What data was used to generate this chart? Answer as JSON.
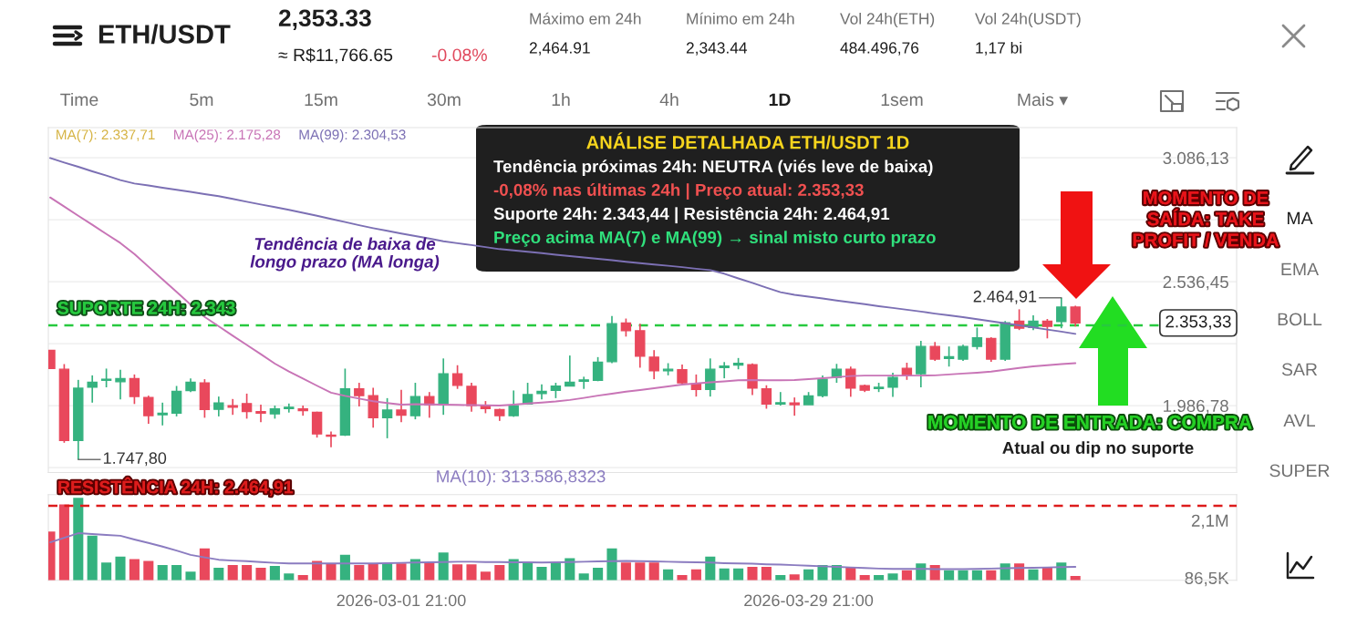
{
  "chart_data": [
    {
      "type": "candlestick",
      "title": "ETH/USDT",
      "subtitle": "2,353.33",
      "categories": [
        null,
        null,
        null,
        null,
        null,
        null,
        null,
        null,
        null,
        null,
        null,
        null,
        null,
        null,
        null,
        null,
        null,
        null,
        null,
        null,
        null,
        null,
        null,
        null,
        null,
        "2026-03-01 21:00",
        null,
        null,
        null,
        null,
        null,
        null,
        null,
        null,
        null,
        null,
        null,
        null,
        null,
        null,
        null,
        null,
        null,
        null,
        null,
        null,
        null,
        null,
        null,
        null,
        null,
        null,
        null,
        null,
        "2026-03-29 21:00",
        null,
        null,
        null,
        null,
        null,
        null,
        null,
        null,
        null,
        null,
        null,
        null,
        null,
        null,
        null,
        null,
        null,
        null,
        null
      ],
      "ohlc": [
        [
          2232,
          2232,
          2151,
          2151
        ],
        [
          2148,
          2171,
          1822,
          1832
        ],
        [
          1832,
          2101,
          1747.8,
          2064
        ],
        [
          2068,
          2121,
          2000,
          2091
        ],
        [
          2099,
          2151,
          2068,
          2104
        ],
        [
          2093,
          2146,
          2014,
          2107
        ],
        [
          2107,
          2125,
          1994,
          2027
        ],
        [
          2023,
          2031,
          1906,
          1942
        ],
        [
          1946,
          2000,
          1899,
          1953
        ],
        [
          1953,
          2074,
          1939,
          2050
        ],
        [
          2053,
          2107,
          2047,
          2091
        ],
        [
          2088,
          2104,
          1933,
          1969
        ],
        [
          1970,
          2027,
          1939,
          1999
        ],
        [
          1987,
          2016,
          1946,
          1980
        ],
        [
          1996,
          2040,
          1929,
          1960
        ],
        [
          1960,
          1991,
          1913,
          1953
        ],
        [
          1950,
          1987,
          1929,
          1972
        ],
        [
          1973,
          1996,
          1956,
          1980
        ],
        [
          1972,
          1987,
          1942,
          1964
        ],
        [
          1957,
          1960,
          1845,
          1861
        ],
        [
          1856,
          1872,
          1802,
          1851
        ],
        [
          1856,
          2151,
          1852,
          2061
        ],
        [
          2061,
          2088,
          1983,
          2031
        ],
        [
          2031,
          2066,
          1889,
          1933
        ],
        [
          1933,
          2020,
          1842,
          1967
        ],
        [
          1967,
          2057,
          1913,
          1944
        ],
        [
          1942,
          2088,
          1926,
          2027
        ],
        [
          2027,
          2047,
          1933,
          1991
        ],
        [
          1991,
          2196,
          1946,
          2128
        ],
        [
          2128,
          2166,
          2061,
          2077
        ],
        [
          2072,
          2088,
          1960,
          1987
        ],
        [
          1987,
          2007,
          1953,
          1973
        ],
        [
          1969,
          1973,
          1919,
          1942
        ],
        [
          1942,
          2054,
          1937,
          1987
        ],
        [
          1994,
          2088,
          1991,
          2036
        ],
        [
          2040,
          2081,
          2014,
          2050
        ],
        [
          2054,
          2088,
          2020,
          2074
        ],
        [
          2074,
          2209,
          2072,
          2091
        ],
        [
          2095,
          2115,
          2061,
          2101
        ],
        [
          2099,
          2202,
          2095,
          2180
        ],
        [
          2182,
          2384,
          2175,
          2350
        ],
        [
          2353,
          2373,
          2293,
          2319
        ],
        [
          2319,
          2350,
          2155,
          2206
        ],
        [
          2202,
          2233,
          2104,
          2141
        ],
        [
          2141,
          2175,
          2121,
          2148
        ],
        [
          2146,
          2169,
          2081,
          2088
        ],
        [
          2084,
          2125,
          2027,
          2058
        ],
        [
          2058,
          2196,
          2027,
          2148
        ],
        [
          2155,
          2180,
          2108,
          2162
        ],
        [
          2166,
          2198,
          2148,
          2175
        ],
        [
          2169,
          2174,
          2034,
          2064
        ],
        [
          2061,
          2077,
          1973,
          1994
        ],
        [
          1994,
          2047,
          1987,
          2000
        ],
        [
          1999,
          2023,
          1942,
          1991
        ],
        [
          1991,
          2047,
          1991,
          2030
        ],
        [
          2031,
          2120,
          2023,
          2104
        ],
        [
          2112,
          2172,
          2088,
          2148
        ],
        [
          2148,
          2160,
          2026,
          2064
        ],
        [
          2076,
          2080,
          2047,
          2055
        ],
        [
          2062,
          2088,
          2047,
          2068
        ],
        [
          2068,
          2133,
          2026,
          2112
        ],
        [
          2152,
          2177,
          2101,
          2120
        ],
        [
          2128,
          2274,
          2068,
          2249
        ],
        [
          2249,
          2269,
          2185,
          2193
        ],
        [
          2196,
          2249,
          2160,
          2204
        ],
        [
          2193,
          2257,
          2185,
          2249
        ],
        [
          2249,
          2333,
          2236,
          2288
        ],
        [
          2285,
          2290,
          2181,
          2193
        ],
        [
          2193,
          2362,
          2185,
          2354
        ],
        [
          2362,
          2414,
          2322,
          2330
        ],
        [
          2333,
          2387,
          2322,
          2362
        ],
        [
          2362,
          2371,
          2285,
          2338
        ],
        [
          2359,
          2464.91,
          2330,
          2424
        ],
        [
          2424,
          2430,
          2338,
          2353.33
        ]
      ],
      "colors": [
        "#e9485c",
        "#e9485c",
        "#35b27f",
        "#35b27f",
        "#35b27f",
        "#35b27f",
        "#e9485c",
        "#e9485c",
        "#35b27f",
        "#35b27f",
        "#35b27f",
        "#e9485c",
        "#35b27f",
        "#e9485c",
        "#e9485c",
        "#e9485c",
        "#35b27f",
        "#35b27f",
        "#e9485c",
        "#e9485c",
        "#e9485c",
        "#35b27f",
        "#e9485c",
        "#e9485c",
        "#35b27f",
        "#e9485c",
        "#35b27f",
        "#e9485c",
        "#35b27f",
        "#e9485c",
        "#e9485c",
        "#e9485c",
        "#e9485c",
        "#35b27f",
        "#35b27f",
        "#35b27f",
        "#35b27f",
        "#35b27f",
        "#35b27f",
        "#35b27f",
        "#35b27f",
        "#e9485c",
        "#e9485c",
        "#e9485c",
        "#35b27f",
        "#e9485c",
        "#e9485c",
        "#35b27f",
        "#35b27f",
        "#35b27f",
        "#e9485c",
        "#e9485c",
        "#35b27f",
        "#e9485c",
        "#35b27f",
        "#35b27f",
        "#35b27f",
        "#e9485c",
        "#e9485c",
        "#35b27f",
        "#35b27f",
        "#e9485c",
        "#35b27f",
        "#e9485c",
        "#35b27f",
        "#35b27f",
        "#35b27f",
        "#e9485c",
        "#35b27f",
        "#e9485c",
        "#35b27f",
        "#e9485c",
        "#35b27f",
        "#e9485c"
      ],
      "series": [
        {
          "name": "MA(7): 2.337,71",
          "type": "line",
          "color": "#d6b445",
          "values": [
            null,
            null,
            null,
            null,
            null,
            null,
            null,
            null,
            null,
            null,
            null,
            null,
            null,
            null,
            null,
            null,
            null,
            null,
            null,
            null,
            null,
            null,
            null,
            null,
            null,
            null,
            null,
            null,
            null,
            null,
            null,
            null,
            null,
            null,
            null,
            null,
            null,
            null,
            null,
            null,
            null,
            null,
            null,
            null,
            null,
            null,
            null,
            null,
            null,
            null,
            null,
            null,
            null,
            null,
            null,
            null,
            null,
            null,
            null,
            null,
            null,
            null,
            null,
            null,
            null,
            null,
            null,
            null,
            null,
            null,
            null,
            null,
            null,
            null
          ]
        },
        {
          "name": "MA(25): 2.175,28",
          "type": "line",
          "color": "#c874b6",
          "values": [
            2910,
            2870,
            2829,
            2789,
            2748,
            2708,
            2659,
            2603,
            2547,
            2491,
            2435,
            2380,
            2339,
            2297,
            2256,
            2215,
            2173,
            2138,
            2107,
            2075,
            2044,
            2030,
            2018,
            2006,
            1998,
            1991,
            1993,
            1992,
            1991,
            1990,
            1989,
            1988,
            1987,
            1991,
            1996,
            2000,
            2005,
            2012,
            2021,
            2031,
            2040,
            2049,
            2056,
            2064,
            2072,
            2080,
            2085,
            2090,
            2094,
            2099,
            2100,
            2099,
            2099,
            2100,
            2104,
            2108,
            2113,
            2118,
            2120,
            2120,
            2120,
            2120,
            2120,
            2121,
            2125,
            2129,
            2133,
            2138,
            2146,
            2154,
            2161,
            2166,
            2171,
            2175
          ]
        },
        {
          "name": "MA(99): 2.304,53",
          "type": "line",
          "color": "#7c70b4",
          "values": [
            3085,
            3065,
            3046,
            3026,
            3007,
            2987,
            2972,
            2963,
            2953,
            2944,
            2935,
            2925,
            2916,
            2904,
            2891,
            2879,
            2867,
            2855,
            2842,
            2829,
            2815,
            2801,
            2787,
            2774,
            2762,
            2750,
            2739,
            2728,
            2716,
            2707,
            2699,
            2690,
            2681,
            2675,
            2669,
            2663,
            2656,
            2650,
            2644,
            2638,
            2632,
            2625,
            2619,
            2613,
            2607,
            2601,
            2594,
            2588,
            2572,
            2551,
            2531,
            2510,
            2490,
            2478,
            2470,
            2462,
            2453,
            2445,
            2437,
            2428,
            2420,
            2412,
            2404,
            2395,
            2387,
            2379,
            2370,
            2361,
            2352,
            2343,
            2334,
            2324,
            2315,
            2305
          ]
        }
      ],
      "ylim": [
        1690,
        3220
      ],
      "yticks": [
        {
          "value": 3086.13,
          "label": "3.086,13"
        },
        {
          "value": 2811.29,
          "label": null
        },
        {
          "value": 2536.45,
          "label": "2.536,45"
        },
        {
          "value": 2261.61,
          "label": null
        },
        {
          "value": 1986.78,
          "label": "1.986,78"
        },
        {
          "value": 1711.94,
          "label": null
        }
      ],
      "grid": "y",
      "legend": "top left",
      "tick_labels": "y",
      "ref_lines": [
        {
          "axis": "y",
          "value": 2343,
          "label": "SUPORTE 24H: 2.343",
          "color": "#27c93f",
          "line_style": "dashed"
        }
      ],
      "annotations": [
        "≈ R$11,766.65",
        "-0.08%",
        "Máximo em 24h",
        "2,464.91",
        "Mínimo em 24h",
        "2,343.44",
        "Vol 24h(ETH)",
        "484.496,76",
        "Vol 24h(USDT)",
        "1,17 bi",
        "Time",
        "5m",
        "15m",
        "30m",
        "1h",
        "4h",
        "1D",
        "1sem",
        "Mais ▾",
        "MA",
        "EMA",
        "BOLL",
        "SAR",
        "AVL",
        "SUPER",
        "ANÁLISE DETALHADA ETH/USDT 1D",
        "Tendência próximas 24h: NEUTRA (viés leve de baixa)",
        "-0,08% nas últimas 24h | Preço atual: 2.353,33",
        "Suporte 24h: 2.343,44 | Resistência 24h: 2.464,91",
        "Preço acima MA(7) e MA(99) → sinal misto curto prazo",
        "Tendência de baixa de\nlongo prazo (MA longa)",
        "MOMENTO DE\nSAÍDA: TAKE\nPROFIT / VENDA",
        "MOMENTO DE ENTRADA: COMPRA",
        "Atual ou dip no suporte",
        "2.464,91",
        "1.747,80",
        {
          "text": "2.353,33",
          "y": 2353.33
        }
      ]
    },
    {
      "type": "bar",
      "categories": [
        null,
        null,
        null,
        null,
        null,
        null,
        null,
        null,
        null,
        null,
        null,
        null,
        null,
        null,
        null,
        null,
        null,
        null,
        null,
        null,
        null,
        null,
        null,
        null,
        null,
        "2026-03-01 21:00",
        null,
        null,
        null,
        null,
        null,
        null,
        null,
        null,
        null,
        null,
        null,
        null,
        null,
        null,
        null,
        null,
        null,
        null,
        null,
        null,
        null,
        null,
        null,
        null,
        null,
        null,
        null,
        null,
        "2026-03-29 21:00",
        null,
        null,
        null,
        null,
        null,
        null,
        null,
        null,
        null,
        null,
        null,
        null,
        null,
        null,
        null,
        null,
        null,
        null,
        null
      ],
      "series": [
        {
          "type": "bar",
          "values": [
            1710000,
            2660000,
            2890000,
            1560000,
            620000,
            830000,
            740000,
            680000,
            530000,
            530000,
            300000,
            1120000,
            440000,
            530000,
            530000,
            440000,
            500000,
            240000,
            180000,
            680000,
            590000,
            890000,
            530000,
            590000,
            590000,
            590000,
            740000,
            620000,
            970000,
            560000,
            560000,
            300000,
            530000,
            740000,
            620000,
            470000,
            620000,
            770000,
            240000,
            440000,
            1120000,
            620000,
            620000,
            620000,
            380000,
            180000,
            380000,
            830000,
            410000,
            410000,
            470000,
            470000,
            180000,
            210000,
            380000,
            530000,
            530000,
            470000,
            180000,
            180000,
            240000,
            350000,
            590000,
            530000,
            350000,
            350000,
            350000,
            350000,
            590000,
            590000,
            380000,
            440000,
            620000,
            150000
          ],
          "colors": [
            "#e9485c",
            "#e9485c",
            "#35b27f",
            "#35b27f",
            "#35b27f",
            "#35b27f",
            "#e9485c",
            "#e9485c",
            "#35b27f",
            "#35b27f",
            "#35b27f",
            "#e9485c",
            "#35b27f",
            "#e9485c",
            "#e9485c",
            "#e9485c",
            "#35b27f",
            "#35b27f",
            "#e9485c",
            "#e9485c",
            "#e9485c",
            "#35b27f",
            "#e9485c",
            "#e9485c",
            "#35b27f",
            "#e9485c",
            "#35b27f",
            "#e9485c",
            "#35b27f",
            "#e9485c",
            "#e9485c",
            "#e9485c",
            "#e9485c",
            "#35b27f",
            "#35b27f",
            "#35b27f",
            "#35b27f",
            "#35b27f",
            "#35b27f",
            "#35b27f",
            "#35b27f",
            "#e9485c",
            "#e9485c",
            "#e9485c",
            "#35b27f",
            "#e9485c",
            "#e9485c",
            "#35b27f",
            "#35b27f",
            "#35b27f",
            "#e9485c",
            "#e9485c",
            "#35b27f",
            "#e9485c",
            "#35b27f",
            "#35b27f",
            "#35b27f",
            "#e9485c",
            "#e9485c",
            "#35b27f",
            "#35b27f",
            "#e9485c",
            "#35b27f",
            "#e9485c",
            "#35b27f",
            "#35b27f",
            "#35b27f",
            "#e9485c",
            "#35b27f",
            "#e9485c",
            "#35b27f",
            "#e9485c",
            "#35b27f",
            "#e9485c"
          ]
        },
        {
          "name": "MA(10): 313.586,8323",
          "type": "line",
          "color": "#8b7cc0",
          "values": [
            1330000,
            1490000,
            1650000,
            1620000,
            1590000,
            1560000,
            1430000,
            1310000,
            1180000,
            1040000,
            890000,
            800000,
            720000,
            690000,
            670000,
            640000,
            610000,
            590000,
            590000,
            590000,
            590000,
            590000,
            590000,
            590000,
            600000,
            610000,
            620000,
            630000,
            640000,
            650000,
            650000,
            640000,
            640000,
            630000,
            630000,
            620000,
            630000,
            640000,
            650000,
            660000,
            670000,
            680000,
            670000,
            660000,
            650000,
            640000,
            630000,
            620000,
            600000,
            590000,
            580000,
            560000,
            550000,
            530000,
            510000,
            490000,
            470000,
            450000,
            430000,
            410000,
            400000,
            400000,
            400000,
            390000,
            390000,
            390000,
            400000,
            410000,
            420000,
            430000,
            440000,
            450000,
            460000,
            470000
          ]
        }
      ],
      "ylim": [
        0,
        3000000
      ],
      "yticks": [
        {
          "value": 2100000,
          "label": "2,1M"
        },
        {
          "value": 86500,
          "label": "86,5K"
        }
      ],
      "legend": "top left",
      "ref_lines": [
        {
          "axis": "y",
          "value": 2610000,
          "color": "#dd1c1c",
          "line_style": "dashed"
        }
      ],
      "annotations": [
        "RESISTÊNCIA 24H: 2.464,91"
      ]
    }
  ]
}
